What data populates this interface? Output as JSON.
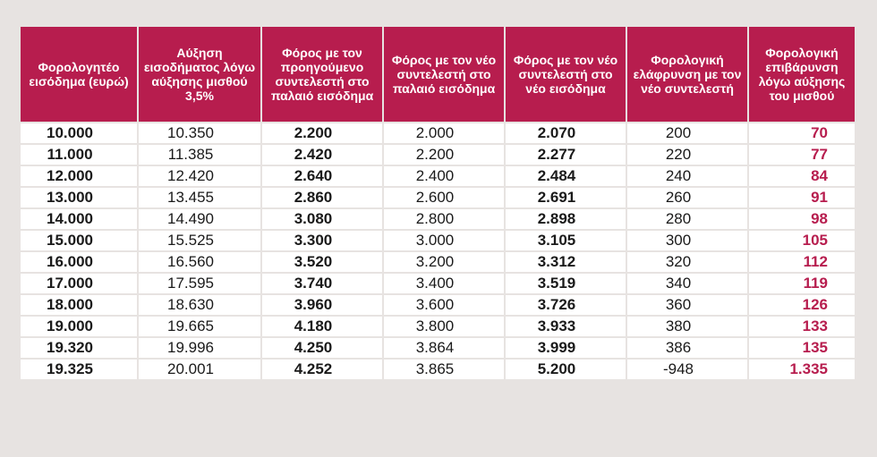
{
  "table": {
    "headers": [
      "Φορολογητέο εισόδημα (ευρώ)",
      "Αύξηση εισοδήματος λόγω αύξησης μισθού 3,5%",
      "Φόρος με τον προηγούμενο συντελεστή στο παλαιό εισόδημα",
      "Φόρος με τον νέο συντελεστή στο παλαιό εισόδημα",
      "Φόρος με τον νέο συντελεστή στο νέο εισόδημα",
      "Φορολογική ελάφρυνση με τον νέο συντελεστή",
      "Φορολογική επιβάρυνση λόγω αύξησης του μισθού"
    ],
    "rows": [
      [
        "10.000",
        "10.350",
        "2.200",
        "2.000",
        "2.070",
        "200",
        "70"
      ],
      [
        "11.000",
        "11.385",
        "2.420",
        "2.200",
        "2.277",
        "220",
        "77"
      ],
      [
        "12.000",
        "12.420",
        "2.640",
        "2.400",
        "2.484",
        "240",
        "84"
      ],
      [
        "13.000",
        "13.455",
        "2.860",
        "2.600",
        "2.691",
        "260",
        "91"
      ],
      [
        "14.000",
        "14.490",
        "3.080",
        "2.800",
        "2.898",
        "280",
        "98"
      ],
      [
        "15.000",
        "15.525",
        "3.300",
        "3.000",
        "3.105",
        "300",
        "105"
      ],
      [
        "16.000",
        "16.560",
        "3.520",
        "3.200",
        "3.312",
        "320",
        "112"
      ],
      [
        "17.000",
        "17.595",
        "3.740",
        "3.400",
        "3.519",
        "340",
        "119"
      ],
      [
        "18.000",
        "18.630",
        "3.960",
        "3.600",
        "3.726",
        "360",
        "126"
      ],
      [
        "19.000",
        "19.665",
        "4.180",
        "3.800",
        "3.933",
        "380",
        "133"
      ],
      [
        "19.320",
        "19.996",
        "4.250",
        "3.864",
        "3.999",
        "386",
        "135"
      ],
      [
        "19.325",
        "20.001",
        "4.252",
        "3.865",
        "5.200",
        "-948",
        "1.335"
      ]
    ],
    "accent_color": "#b71d4e"
  }
}
